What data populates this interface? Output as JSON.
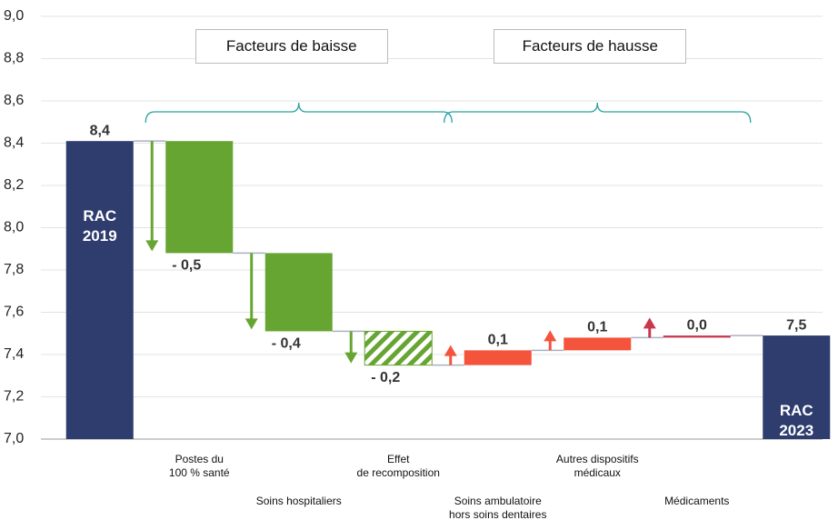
{
  "chart_data": {
    "type": "waterfall",
    "categories": [
      "RAC\n2019",
      "Postes du\n100 % santé",
      "Soins hospitaliers",
      "Effet\nde recomposition",
      "Soins ambulatoire\nhors soins dentaires",
      "Autres dispositifs\nmédicaux",
      "Médicaments",
      "RAC\n2023"
    ],
    "measures": [
      "absolute",
      "relative",
      "relative",
      "relative",
      "relative",
      "relative",
      "relative",
      "absolute"
    ],
    "values": [
      8.41,
      -0.53,
      -0.37,
      -0.16,
      0.07,
      0.06,
      0.01,
      7.49
    ],
    "value_labels": [
      "8,4",
      "- 0,5",
      "- 0,4",
      "- 0,2",
      "0,1",
      "0,1",
      "0,0",
      "7,5"
    ],
    "colors": [
      "#2e3d6e",
      "#67a533",
      "#67a533",
      "#67a533",
      "#f4533c",
      "#f4533c",
      "#c9374f",
      "#2e3d6e"
    ],
    "hatched": [
      false,
      false,
      false,
      true,
      false,
      false,
      false,
      false
    ],
    "annotations": [
      {
        "text": "Facteurs de baisse",
        "from": 1,
        "to": 3
      },
      {
        "text": "Facteurs de hausse",
        "from": 4,
        "to": 6
      }
    ],
    "ylim": [
      7,
      9
    ],
    "yticks": [
      {
        "value": 7,
        "label": "7,0"
      },
      {
        "value": 7.2,
        "label": "7,2"
      },
      {
        "value": 7.4,
        "label": "7,4"
      },
      {
        "value": 7.6,
        "label": "7,6"
      },
      {
        "value": 7.8,
        "label": "7,8"
      },
      {
        "value": 8,
        "label": "8,0"
      },
      {
        "value": 8.2,
        "label": "8,2"
      },
      {
        "value": 8.4,
        "label": "8,4"
      },
      {
        "value": 8.6,
        "label": "8,6"
      },
      {
        "value": 8.8,
        "label": "8,8"
      },
      {
        "value": 9,
        "label": "9,0"
      }
    ],
    "grid": true
  }
}
